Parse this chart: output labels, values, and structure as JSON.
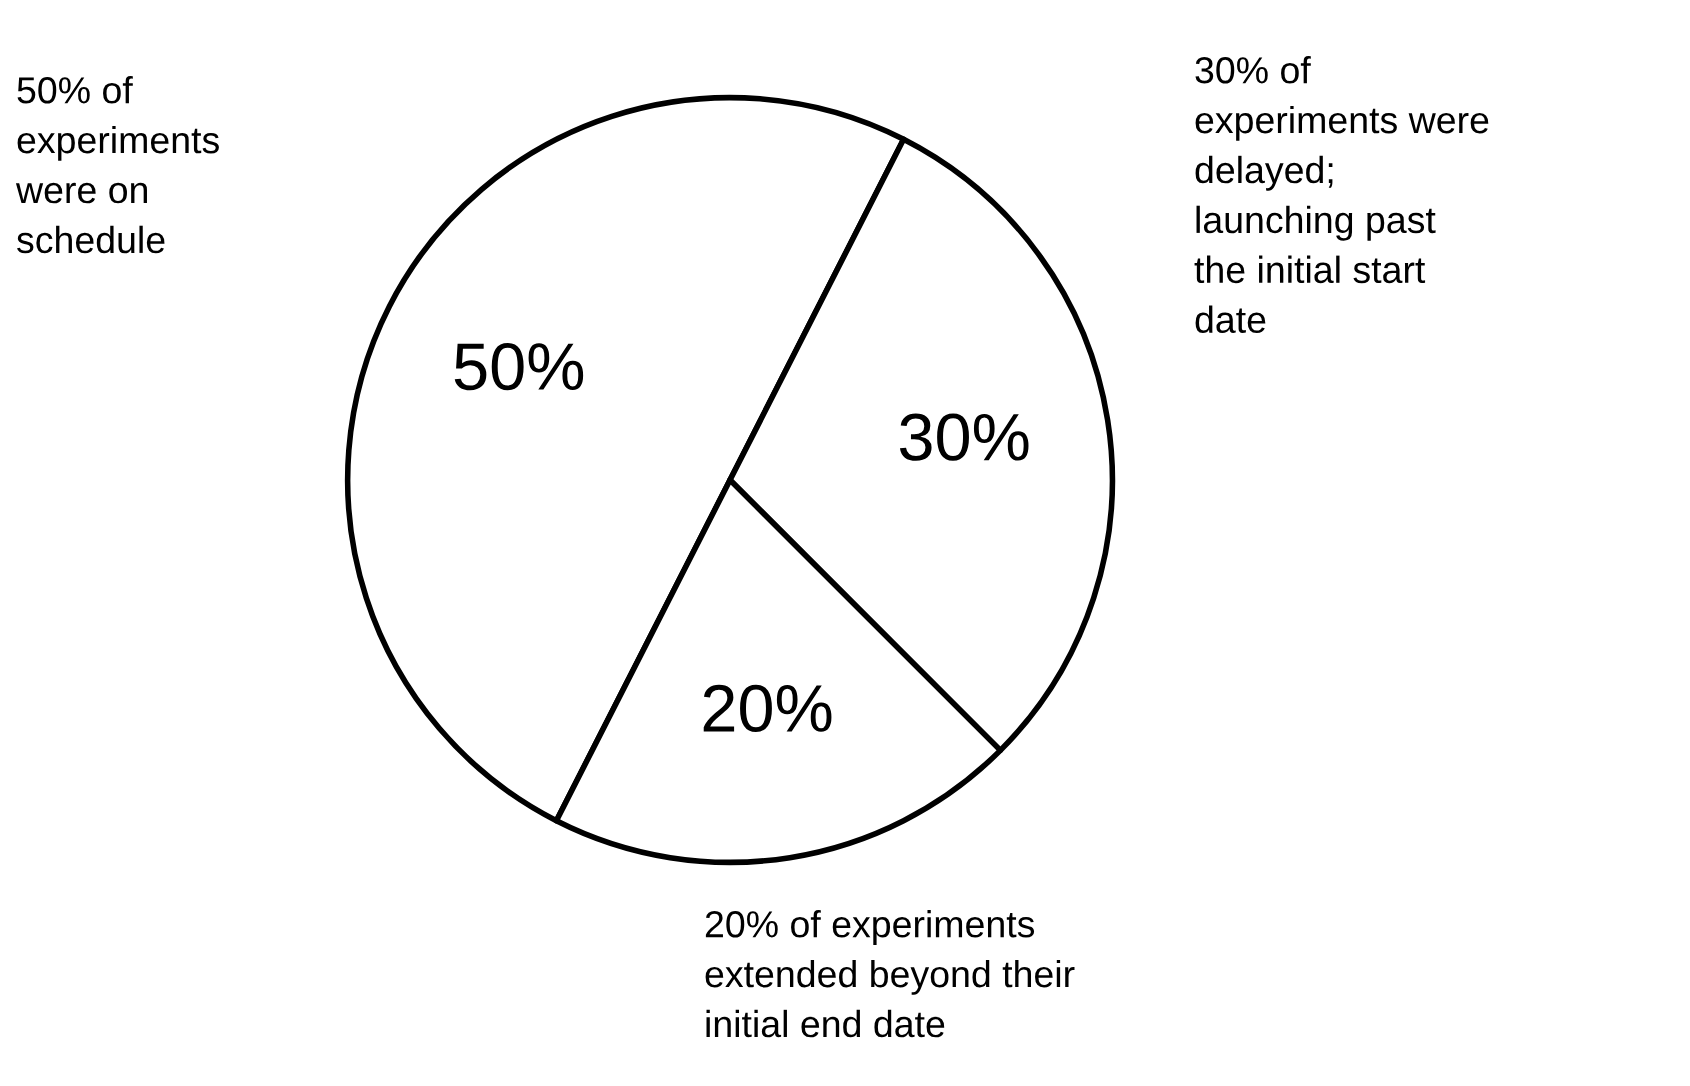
{
  "chart_data": {
    "type": "pie",
    "categories": [
      "50% of\nexperiments\nwere on\nschedule",
      "30% of\nexperiments were\ndelayed;\nlaunching past\nthe initial start\ndate",
      "20% of experiments\nextended beyond their\ninitial end date"
    ],
    "values": [
      50,
      30,
      20
    ],
    "value_labels": [
      "50%",
      "30%",
      "20%"
    ],
    "colors": [
      "#ffffff",
      "#ffffff",
      "#ffffff"
    ]
  }
}
